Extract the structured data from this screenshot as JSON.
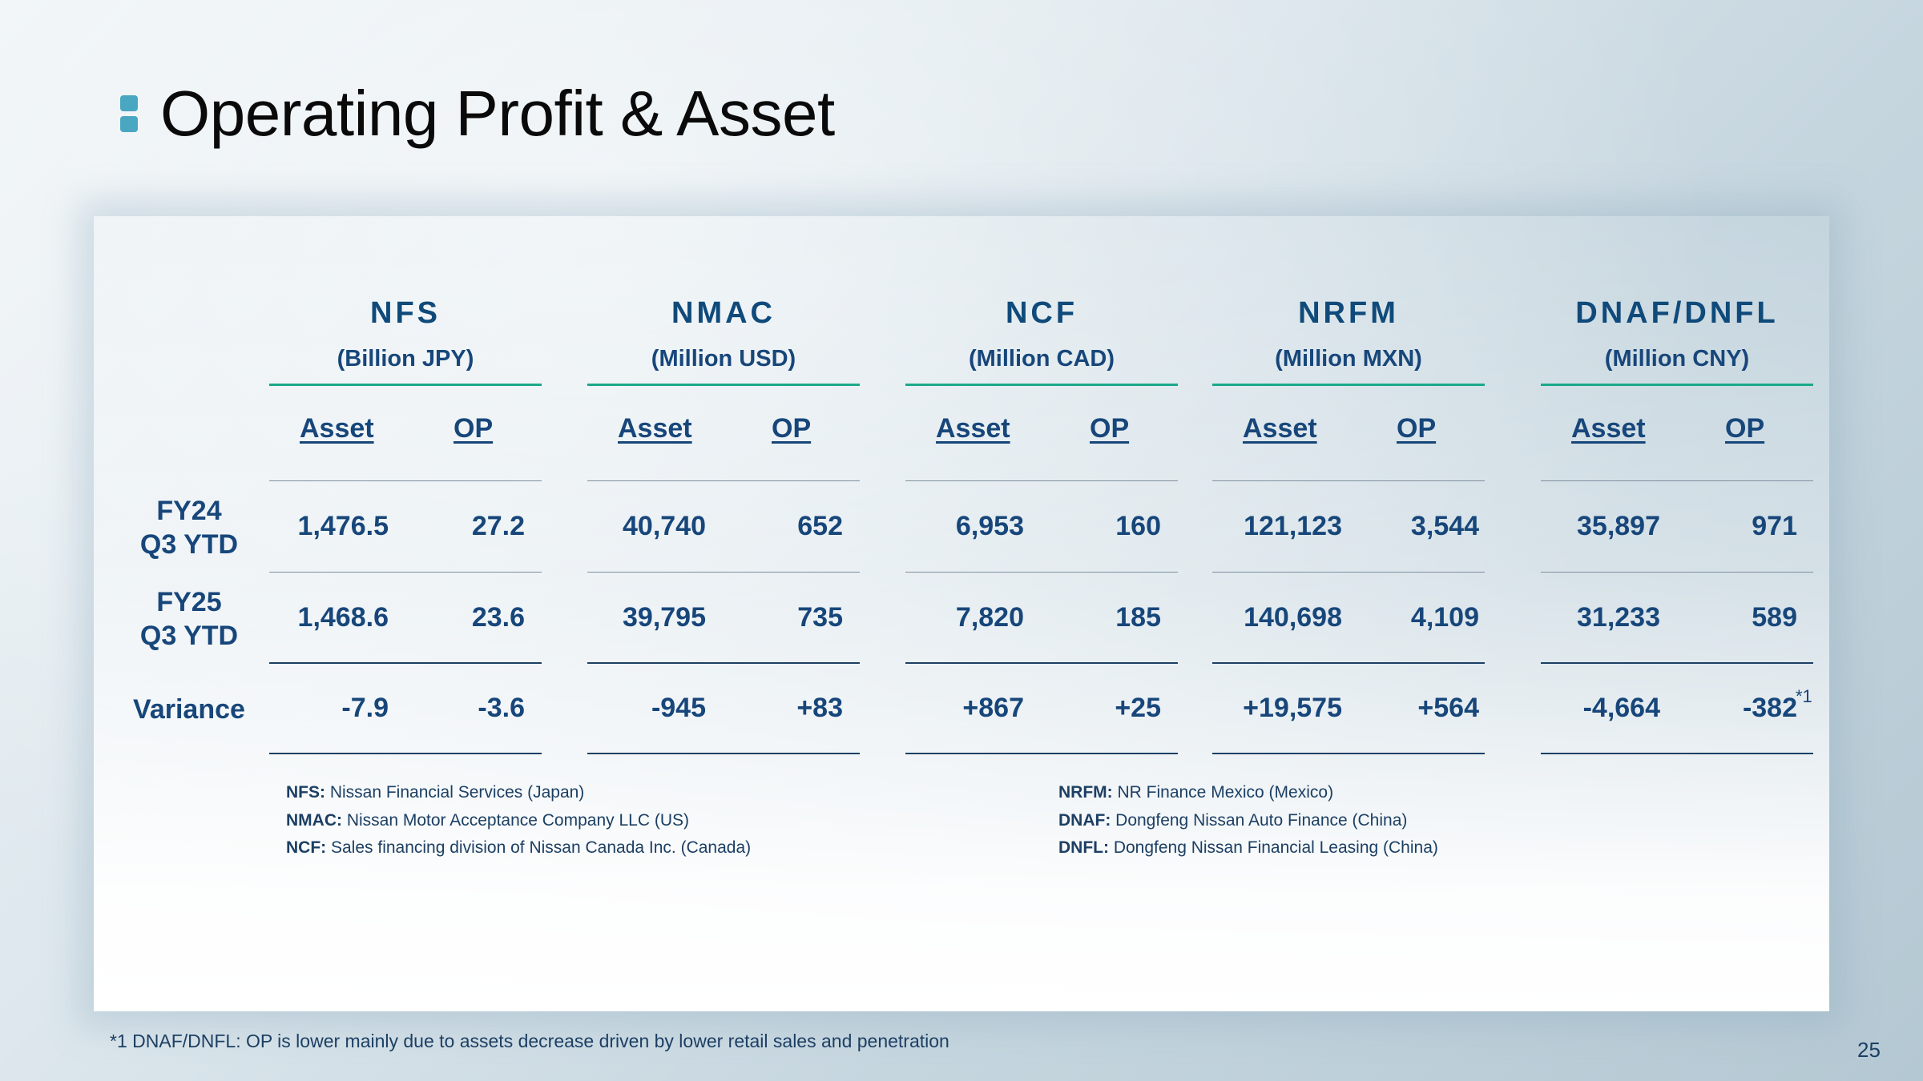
{
  "title": "Operating Profit & Asset",
  "companies": [
    {
      "name": "NFS",
      "unit": "(Billion JPY)",
      "asset_label": "Asset",
      "op_label": "OP"
    },
    {
      "name": "NMAC",
      "unit": "(Million USD)",
      "asset_label": "Asset",
      "op_label": "OP"
    },
    {
      "name": "NCF",
      "unit": "(Million CAD)",
      "asset_label": "Asset",
      "op_label": "OP"
    },
    {
      "name": "NRFM",
      "unit": "(Million MXN)",
      "asset_label": "Asset",
      "op_label": "OP"
    },
    {
      "name": "DNAF/DNFL",
      "unit": "(Million CNY)",
      "asset_label": "Asset",
      "op_label": "OP"
    }
  ],
  "rows": [
    {
      "label_line1": "FY24",
      "label_line2": "Q3 YTD",
      "values": [
        "1,476.5",
        "27.2",
        "40,740",
        "652",
        "6,953",
        "160",
        "121,123",
        "3,544",
        "35,897",
        "971"
      ]
    },
    {
      "label_line1": "FY25",
      "label_line2": "Q3 YTD",
      "values": [
        "1,468.6",
        "23.6",
        "39,795",
        "735",
        "7,820",
        "185",
        "140,698",
        "4,109",
        "31,233",
        "589"
      ]
    },
    {
      "label_line1": "Variance",
      "label_line2": "",
      "values": [
        "-7.9",
        "-3.6",
        "-945",
        "+83",
        "+867",
        "+25",
        "+19,575",
        "+564",
        "-4,664",
        "-382"
      ]
    }
  ],
  "variance_footnote_mark": "*1",
  "legend_left": [
    {
      "abbr": "NFS:",
      "desc": " Nissan Financial Services (Japan)"
    },
    {
      "abbr": "NMAC:",
      "desc": " Nissan Motor Acceptance Company LLC (US)"
    },
    {
      "abbr": "NCF:",
      "desc": " Sales financing division of Nissan Canada Inc. (Canada)"
    }
  ],
  "legend_right": [
    {
      "abbr": "NRFM:",
      "desc": " NR Finance Mexico (Mexico)"
    },
    {
      "abbr": "DNAF:",
      "desc": " Dongfeng Nissan Auto Finance (China)"
    },
    {
      "abbr": "DNFL:",
      "desc": " Dongfeng Nissan Financial Leasing (China)"
    }
  ],
  "footnote": "*1 DNAF/DNFL: OP is lower mainly due to assets decrease driven by lower retail sales and penetration",
  "page_number": "25",
  "colors": {
    "accent_marker": "#4aa7c2",
    "header_line": "#1aa98a",
    "text_navy": "#17467a"
  }
}
